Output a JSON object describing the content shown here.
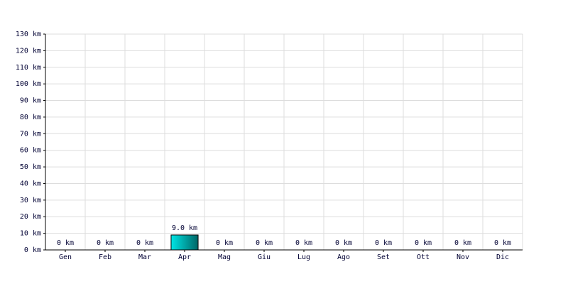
{
  "chart_data": {
    "type": "bar",
    "categories": [
      "Gen",
      "Feb",
      "Mar",
      "Apr",
      "Mag",
      "Giu",
      "Lug",
      "Ago",
      "Set",
      "Ott",
      "Nov",
      "Dic"
    ],
    "values": [
      0,
      0,
      0,
      9.0,
      0,
      0,
      0,
      0,
      0,
      0,
      0,
      0
    ],
    "value_labels": [
      "0 km",
      "0 km",
      "0 km",
      "9.0 km",
      "0 km",
      "0 km",
      "0 km",
      "0 km",
      "0 km",
      "0 km",
      "0 km",
      "0 km"
    ],
    "color": "#00cccc",
    "ylim": [
      0,
      130
    ],
    "yticks": [
      {
        "value": 0,
        "label": "0 km"
      },
      {
        "value": 10,
        "label": "10 km"
      },
      {
        "value": 20,
        "label": "20 km"
      },
      {
        "value": 30,
        "label": "30 km"
      },
      {
        "value": 40,
        "label": "40 km"
      },
      {
        "value": 50,
        "label": "50 km"
      },
      {
        "value": 60,
        "label": "60 km"
      },
      {
        "value": 70,
        "label": "70 km"
      },
      {
        "value": 80,
        "label": "80 km"
      },
      {
        "value": 90,
        "label": "90 km"
      },
      {
        "value": 100,
        "label": "100 km"
      },
      {
        "value": 110,
        "label": "110 km"
      },
      {
        "value": 120,
        "label": "120 km"
      },
      {
        "value": 130,
        "label": "130 km"
      }
    ],
    "grid": true
  }
}
